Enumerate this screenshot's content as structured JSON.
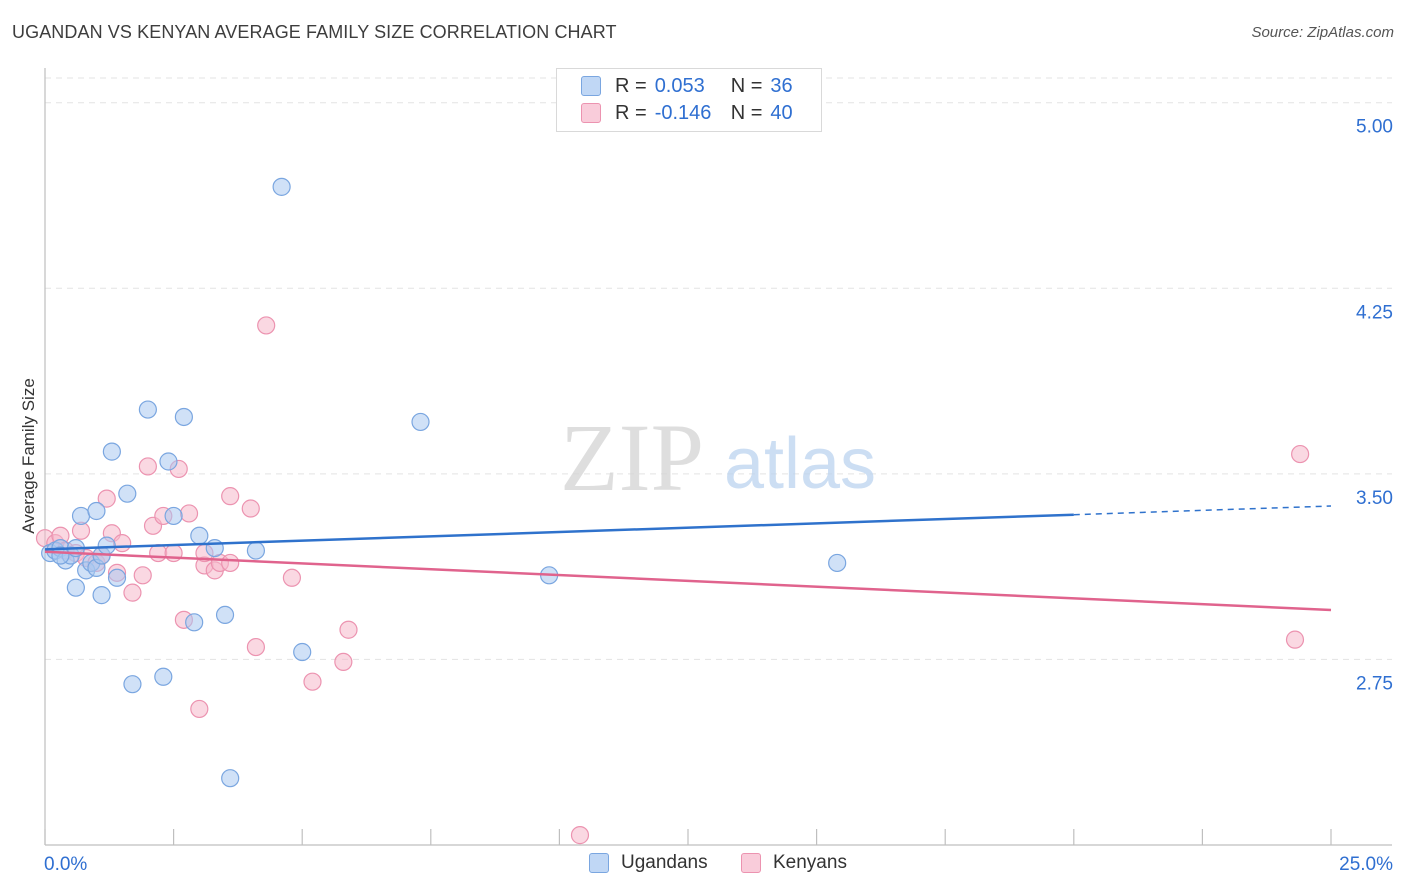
{
  "title": "UGANDAN VS KENYAN AVERAGE FAMILY SIZE CORRELATION CHART",
  "source": "Source: ZipAtlas.com",
  "watermark": {
    "zip": "ZIP",
    "atlas": "atlas"
  },
  "colors": {
    "ugandan_fill": "#a9c8f0",
    "ugandan_stroke": "#7aa6e0",
    "ugandan_line": "#2f72cc",
    "kenyan_fill": "#f6b8cb",
    "kenyan_stroke": "#ec93b0",
    "kenyan_line": "#e0638d",
    "value_text": "#2f6fd1",
    "grid": "#e3e3e3"
  },
  "legend": {
    "rows": [
      {
        "r_label": "R =",
        "r_value": "0.053",
        "n_label": "N =",
        "n_value": "36"
      },
      {
        "r_label": "R =",
        "r_value": "-0.146",
        "n_label": "N =",
        "n_value": "40"
      }
    ]
  },
  "bottom_legend": [
    "Ugandans",
    "Kenyans"
  ],
  "chart_data": {
    "type": "scatter",
    "title": "UGANDAN VS KENYAN AVERAGE FAMILY SIZE CORRELATION CHART",
    "xlabel": "",
    "ylabel": "Average Family Size",
    "xlim": [
      0,
      25
    ],
    "ylim": [
      2.0,
      5.1
    ],
    "x_tick_labels": [
      "0.0%",
      "25.0%"
    ],
    "y_ticks": [
      2.75,
      3.5,
      4.25,
      5.0
    ],
    "y_tick_labels": [
      "2.75",
      "3.50",
      "4.25",
      "5.00"
    ],
    "series": [
      {
        "name": "Ugandans",
        "r": 0.053,
        "n": 36,
        "points": [
          [
            0.1,
            3.18
          ],
          [
            0.2,
            3.19
          ],
          [
            0.3,
            3.2
          ],
          [
            0.4,
            3.15
          ],
          [
            0.5,
            3.17
          ],
          [
            0.6,
            3.2
          ],
          [
            0.6,
            3.04
          ],
          [
            0.7,
            3.33
          ],
          [
            0.8,
            3.11
          ],
          [
            0.9,
            3.14
          ],
          [
            1.0,
            3.12
          ],
          [
            1.0,
            3.35
          ],
          [
            1.1,
            3.17
          ],
          [
            1.1,
            3.01
          ],
          [
            1.2,
            3.21
          ],
          [
            1.3,
            3.59
          ],
          [
            1.4,
            3.08
          ],
          [
            1.6,
            3.42
          ],
          [
            1.7,
            2.65
          ],
          [
            2.0,
            3.76
          ],
          [
            2.3,
            2.68
          ],
          [
            2.4,
            3.55
          ],
          [
            2.5,
            3.33
          ],
          [
            2.7,
            3.73
          ],
          [
            2.9,
            2.9
          ],
          [
            3.0,
            3.25
          ],
          [
            3.3,
            3.2
          ],
          [
            3.5,
            2.93
          ],
          [
            3.6,
            2.27
          ],
          [
            4.1,
            3.19
          ],
          [
            4.6,
            4.66
          ],
          [
            5.0,
            2.78
          ],
          [
            7.3,
            3.71
          ],
          [
            9.8,
            3.09
          ],
          [
            15.4,
            3.14
          ],
          [
            0.3,
            3.17
          ]
        ]
      },
      {
        "name": "Kenyans",
        "r": -0.146,
        "n": 40,
        "points": [
          [
            0.0,
            3.24
          ],
          [
            0.2,
            3.22
          ],
          [
            0.3,
            3.25
          ],
          [
            0.4,
            3.19
          ],
          [
            0.6,
            3.18
          ],
          [
            0.7,
            3.27
          ],
          [
            0.8,
            3.16
          ],
          [
            1.0,
            3.14
          ],
          [
            1.1,
            3.17
          ],
          [
            1.2,
            3.4
          ],
          [
            1.3,
            3.26
          ],
          [
            1.4,
            3.1
          ],
          [
            1.5,
            3.22
          ],
          [
            1.7,
            3.02
          ],
          [
            1.9,
            3.09
          ],
          [
            2.0,
            3.53
          ],
          [
            2.1,
            3.29
          ],
          [
            2.2,
            3.18
          ],
          [
            2.3,
            3.33
          ],
          [
            2.5,
            3.18
          ],
          [
            2.6,
            3.52
          ],
          [
            2.7,
            2.91
          ],
          [
            2.8,
            3.34
          ],
          [
            3.0,
            2.55
          ],
          [
            3.1,
            3.13
          ],
          [
            3.1,
            3.18
          ],
          [
            3.3,
            3.11
          ],
          [
            3.4,
            3.14
          ],
          [
            3.6,
            3.41
          ],
          [
            3.6,
            3.14
          ],
          [
            4.0,
            3.36
          ],
          [
            4.1,
            2.8
          ],
          [
            4.3,
            4.1
          ],
          [
            4.8,
            3.08
          ],
          [
            5.2,
            2.66
          ],
          [
            5.8,
            2.74
          ],
          [
            5.9,
            2.87
          ],
          [
            10.4,
            2.04
          ],
          [
            24.3,
            2.83
          ],
          [
            24.4,
            3.58
          ]
        ]
      }
    ],
    "trend_lines": [
      {
        "series": "Ugandans",
        "x0": 0,
        "y0": 3.195,
        "x1": 20,
        "y1": 3.335,
        "dashed_to_x": 25,
        "dashed_to_y": 3.37
      },
      {
        "series": "Kenyans",
        "x0": 0,
        "y0": 3.185,
        "x1": 25,
        "y1": 2.95
      }
    ]
  }
}
